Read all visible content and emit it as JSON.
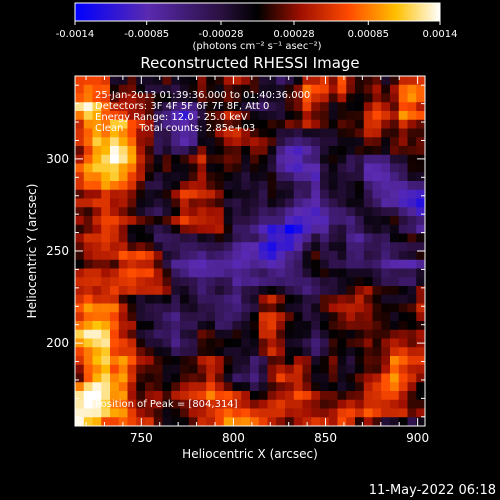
{
  "chart_data": {
    "type": "heatmap",
    "title": "Reconstructed RHESSI Image",
    "xlabel": "Heliocentric X (arcsec)",
    "ylabel": "Heliocentric Y (arcsec)",
    "xlim": [
      714,
      904
    ],
    "ylim": [
      155,
      345
    ],
    "x_ticks": [
      750,
      800,
      850,
      900
    ],
    "y_ticks": [
      200,
      250,
      300
    ],
    "colorbar": {
      "range": [
        -0.0014,
        0.0014
      ],
      "tick_values": [
        -0.0014,
        -0.00085,
        -0.00028,
        0.00028,
        0.00085,
        0.0014
      ],
      "tick_labels": [
        "-0.0014",
        "-0.00085",
        "-0.00028",
        "0.00028",
        "0.00085",
        "0.0014"
      ],
      "units_label": "(photons cm⁻² s⁻¹ asec⁻²)",
      "colors": [
        "#0000ff",
        "#5a2ab0",
        "#2a1040",
        "#000000",
        "#a01000",
        "#ff4a00",
        "#ffc000",
        "#ffffff"
      ]
    },
    "annotations": [
      "25-Jan-2013 01:39:36.000 to 01:40:36.000",
      "Detectors: 3F 4F 5F 6F 7F 8F, Att 0",
      "Energy Range: 12.0 - 25.0 keV",
      "Clean     Total counts: 2.85e+03"
    ],
    "peak_label": "Position of Peak = [804,314]",
    "peak": [
      804,
      314
    ],
    "grid_size": [
      40,
      40
    ]
  },
  "footer_date": "11-May-2022 06:18"
}
